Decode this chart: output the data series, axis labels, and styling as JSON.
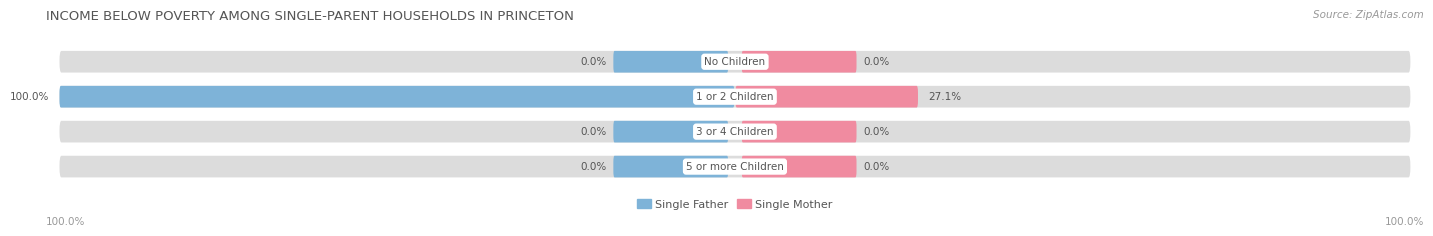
{
  "title": "INCOME BELOW POVERTY AMONG SINGLE-PARENT HOUSEHOLDS IN PRINCETON",
  "source": "Source: ZipAtlas.com",
  "categories": [
    "No Children",
    "1 or 2 Children",
    "3 or 4 Children",
    "5 or more Children"
  ],
  "single_father": [
    0.0,
    100.0,
    0.0,
    0.0
  ],
  "single_mother": [
    0.0,
    27.1,
    0.0,
    0.0
  ],
  "father_color": "#7EB3D8",
  "mother_color": "#F08BA0",
  "bar_bg_color": "#DCDCDC",
  "bar_height": 0.62,
  "title_fontsize": 9.5,
  "source_fontsize": 7.5,
  "label_fontsize": 7.5,
  "category_fontsize": 7.5,
  "legend_fontsize": 8,
  "bottom_axis_left_label": "100.0%",
  "bottom_axis_right_label": "100.0%",
  "background_color": "#FFFFFF",
  "text_color": "#555555",
  "source_color": "#999999"
}
